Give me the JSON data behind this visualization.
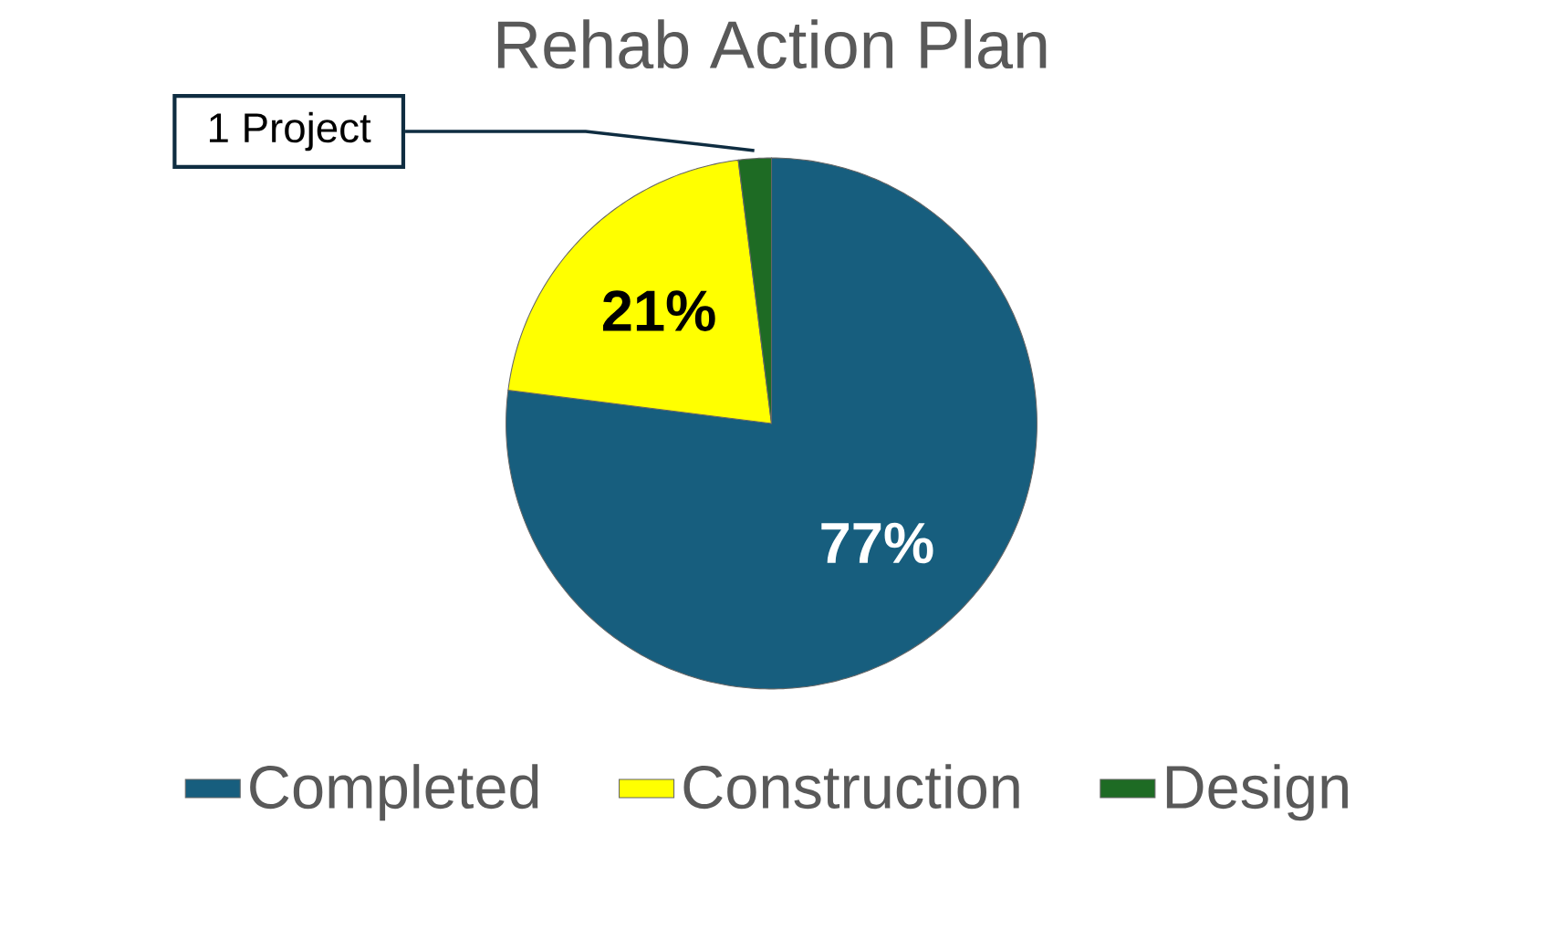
{
  "chart_data": {
    "type": "pie",
    "title": "Rehab Action Plan",
    "categories": [
      "Completed",
      "Construction",
      "Design"
    ],
    "values": [
      77,
      21,
      2
    ],
    "colors": [
      "#175e7e",
      "#ffff00",
      "#1e6b24"
    ],
    "value_labels": [
      "77%",
      "21%",
      null
    ],
    "annotations": [
      {
        "text": "1 Project",
        "x": "Design"
      }
    ],
    "legend": "bottom"
  }
}
